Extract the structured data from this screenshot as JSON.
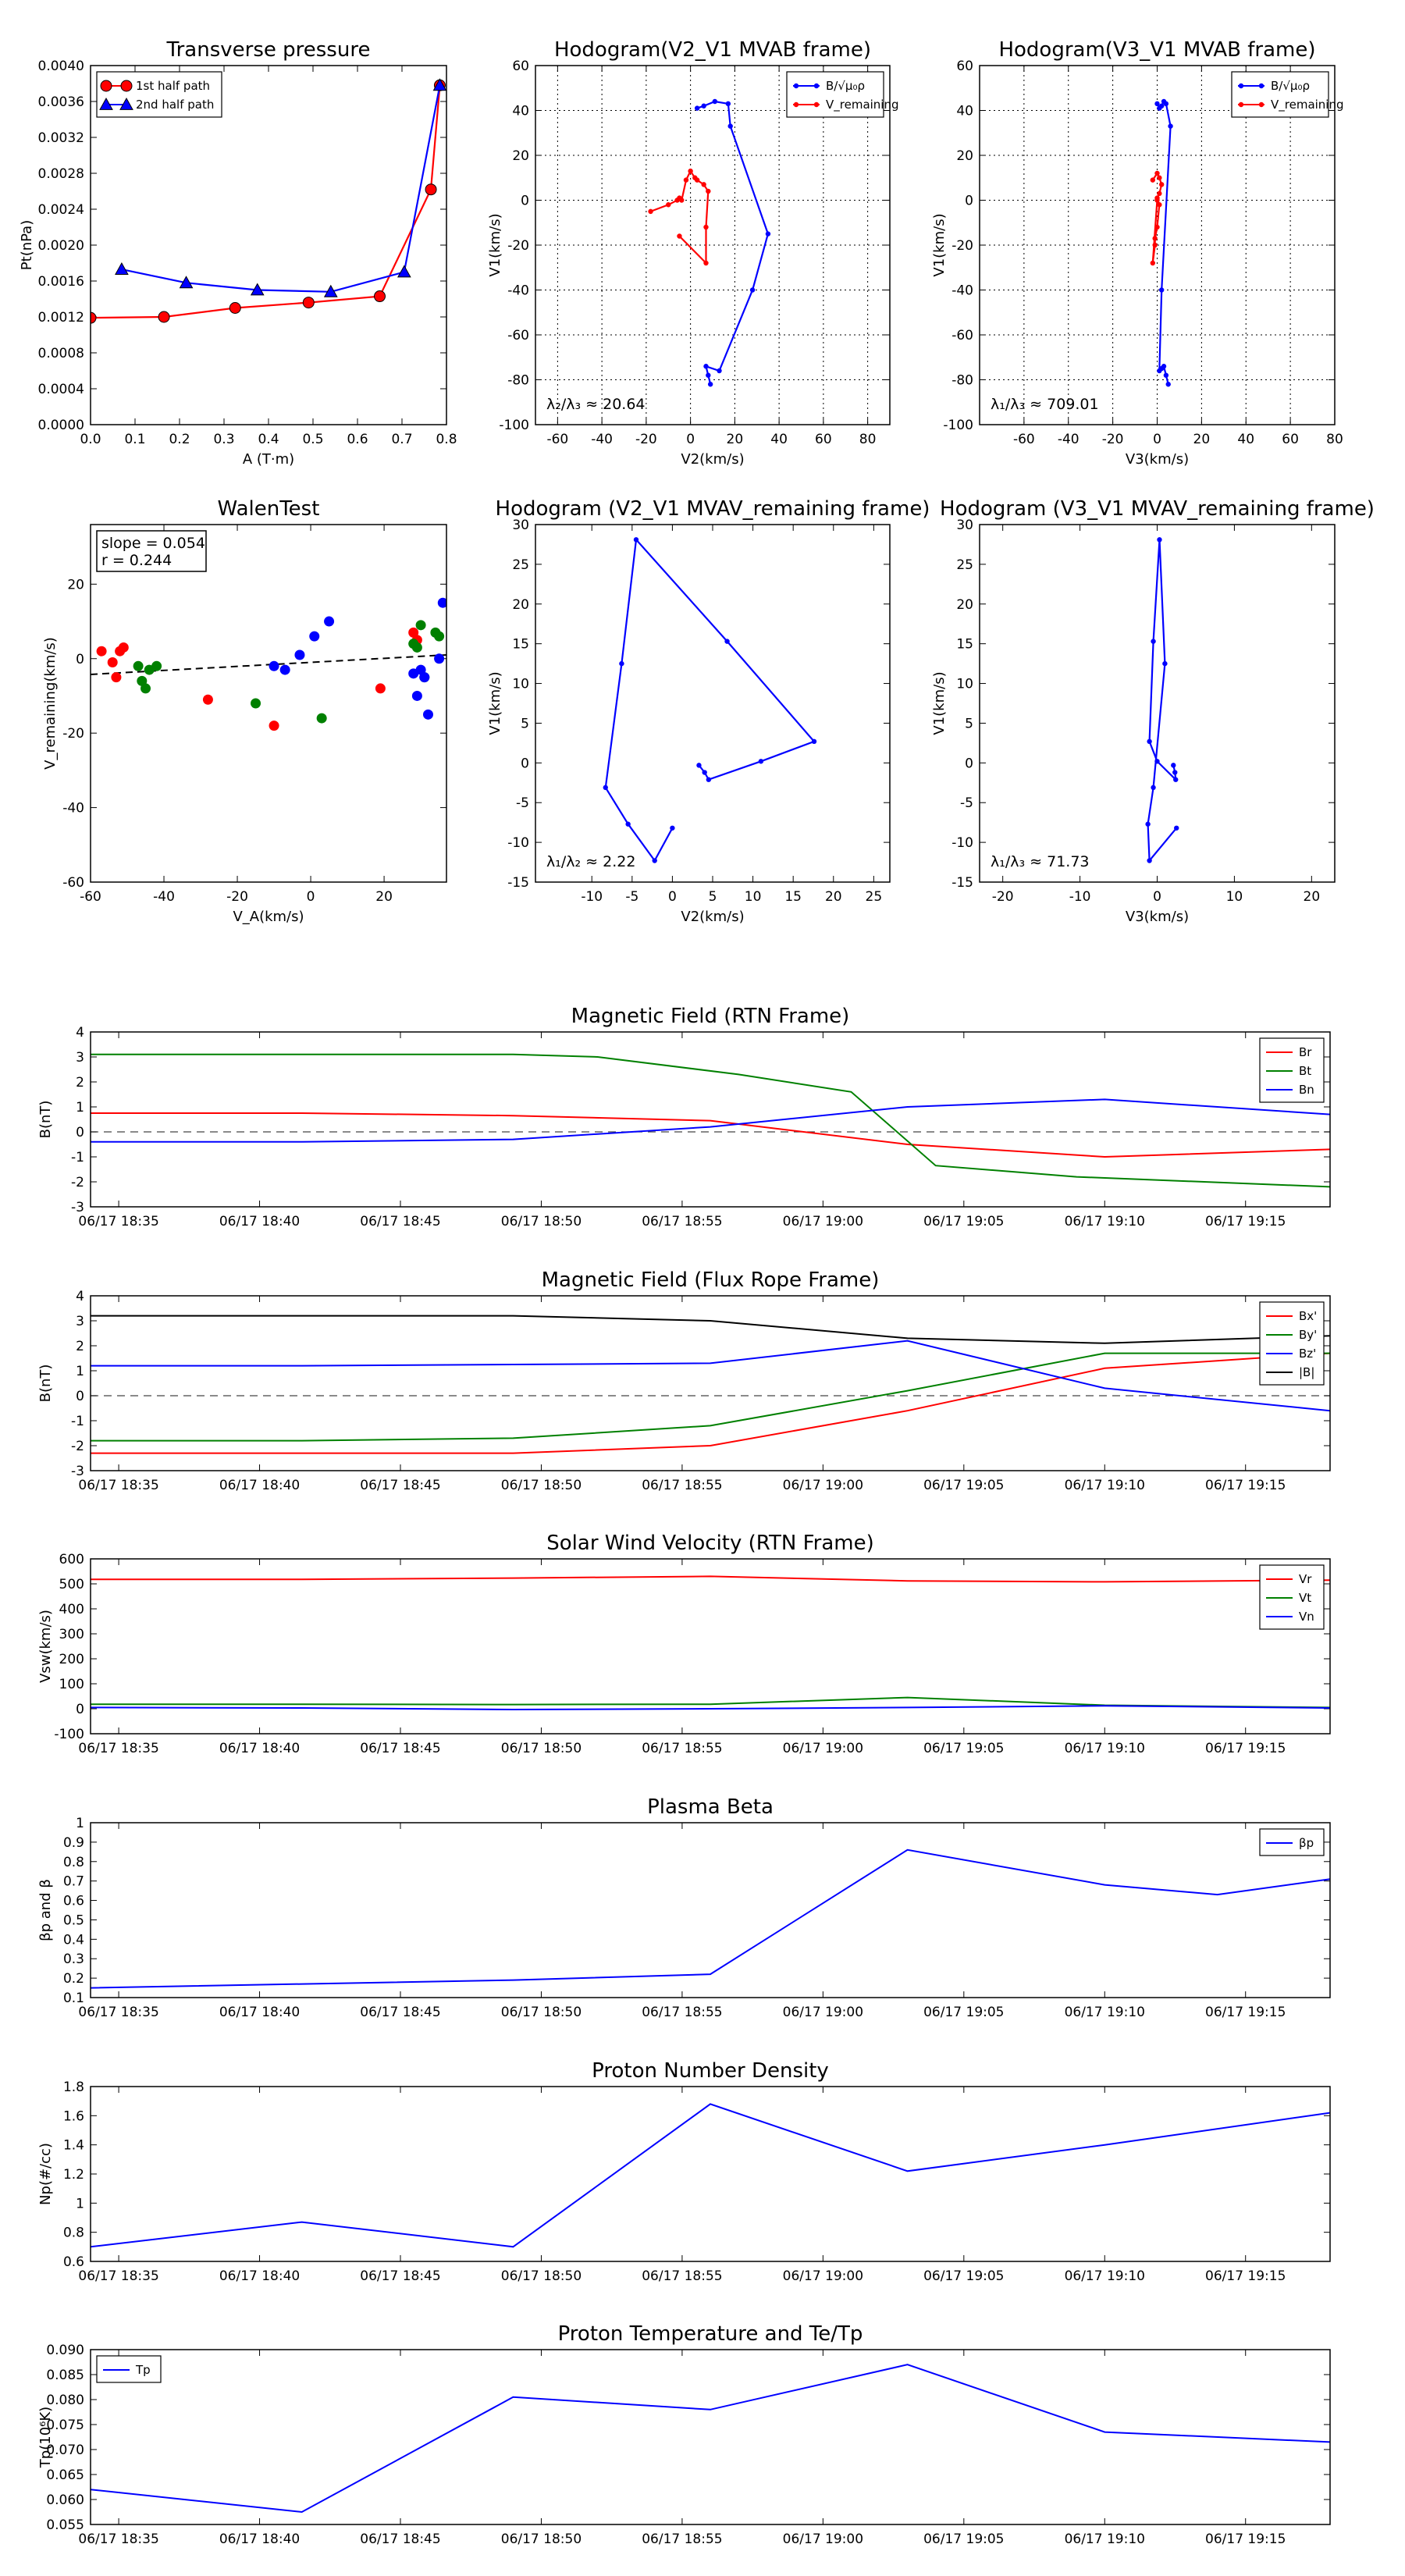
{
  "chart_data": [
    {
      "id": "pt",
      "type": "line",
      "title": "Transverse pressure",
      "xlabel": "A (T·m)",
      "ylabel": "Pt(nPa)",
      "xlim": [
        0,
        0.8
      ],
      "ylim": [
        0,
        0.004
      ],
      "xticks": [
        0,
        0.1,
        0.2,
        0.3,
        0.4,
        0.5,
        0.6,
        0.7,
        0.8
      ],
      "xticklabels": [
        "0.0",
        "0.1",
        "0.2",
        "0.3",
        "0.4",
        "0.5",
        "0.6",
        "0.7",
        "0.8"
      ],
      "yticks": [
        0,
        0.0004,
        0.0008,
        0.0012,
        0.0016,
        0.002,
        0.0024,
        0.0028,
        0.0032,
        0.0036,
        0.004
      ],
      "yticklabels": [
        "0.0000",
        "0.0004",
        "0.0008",
        "0.0012",
        "0.0016",
        "0.0020",
        "0.0024",
        "0.0028",
        "0.0032",
        "0.0036",
        "0.0040"
      ],
      "legend": "top-left",
      "series": [
        {
          "name": "1st half path",
          "color": "#ff0000",
          "marker": "circle",
          "x": [
            0.0,
            0.165,
            0.325,
            0.49,
            0.65,
            0.765,
            0.785
          ],
          "y": [
            0.00119,
            0.0012,
            0.0013,
            0.00136,
            0.00143,
            0.00262,
            0.00378
          ]
        },
        {
          "name": "2nd half path",
          "color": "#0000ff",
          "marker": "triangle",
          "x": [
            0.785,
            0.705,
            0.54,
            0.375,
            0.215,
            0.07
          ],
          "y": [
            0.00378,
            0.0017,
            0.00148,
            0.0015,
            0.00158,
            0.00173
          ]
        }
      ]
    },
    {
      "id": "h1",
      "type": "line",
      "title": "Hodogram(V2_V1 MVAB frame)",
      "xlabel": "V2(km/s)",
      "ylabel": "V1(km/s)",
      "xlim": [
        -70,
        90
      ],
      "ylim": [
        -100,
        60
      ],
      "xticks": [
        -60,
        -40,
        -20,
        0,
        20,
        40,
        60,
        80
      ],
      "yticks": [
        -100,
        -80,
        -60,
        -40,
        -20,
        0,
        20,
        40,
        60
      ],
      "grid": true,
      "legend": "top-right",
      "annotation": "λ₂/λ₃ ≈ 20.64",
      "series": [
        {
          "name": "B/√μ₀ρ",
          "color": "#0000ff",
          "x": [
            3,
            6,
            11,
            17,
            18,
            35,
            28,
            13,
            7,
            8,
            9
          ],
          "y": [
            41,
            42,
            44,
            43,
            33,
            -15,
            -40,
            -76,
            -74,
            -78,
            -82
          ]
        },
        {
          "name": "V_remaining",
          "color": "#ff0000",
          "x": [
            -18,
            -10,
            -6,
            -5,
            -4,
            -2,
            0,
            2,
            3,
            6,
            8,
            7,
            7,
            -5
          ],
          "y": [
            -5,
            -2,
            0,
            1,
            0,
            9,
            13,
            10,
            9,
            7,
            4,
            -12,
            -28,
            -16
          ]
        }
      ]
    },
    {
      "id": "h2",
      "type": "line",
      "title": "Hodogram(V3_V1 MVAB frame)",
      "xlabel": "V3(km/s)",
      "ylabel": "V1(km/s)",
      "xlim": [
        -80,
        80
      ],
      "ylim": [
        -100,
        60
      ],
      "xticks": [
        -60,
        -40,
        -20,
        0,
        20,
        40,
        60,
        80
      ],
      "yticks": [
        -100,
        -80,
        -60,
        -40,
        -20,
        0,
        20,
        40,
        60
      ],
      "grid": true,
      "legend": "top-right",
      "annotation": "λ₁/λ₃ ≈ 709.01",
      "series": [
        {
          "name": "B/√μ₀ρ",
          "color": "#0000ff",
          "x": [
            0,
            1,
            2,
            3,
            4,
            6,
            2,
            1,
            2,
            3,
            4,
            5
          ],
          "y": [
            43,
            41,
            42,
            44,
            43,
            33,
            -40,
            -76,
            -75,
            -74,
            -78,
            -82
          ]
        },
        {
          "name": "V_remaining",
          "color": "#ff0000",
          "x": [
            -2,
            0,
            1,
            2,
            1,
            0,
            1,
            0,
            -1,
            -1,
            -2,
            0
          ],
          "y": [
            9,
            12,
            10,
            7,
            3,
            1,
            -2,
            -12,
            -17,
            -20,
            -28,
            0
          ]
        }
      ]
    },
    {
      "id": "walen",
      "type": "scatter",
      "title": "WalenTest",
      "xlabel": "V_A(km/s)",
      "ylabel": "V_remaining(km/s)",
      "xlim": [
        -60,
        37
      ],
      "ylim": [
        -60,
        36
      ],
      "xticks": [
        -60,
        -40,
        -20,
        0,
        20
      ],
      "yticks": [
        -60,
        -40,
        -20,
        0,
        20
      ],
      "annotation": [
        "slope = 0.054",
        "r = 0.244"
      ],
      "fit": {
        "slope": 0.054,
        "intercept": -1.0
      },
      "series": [
        {
          "color": "#ff0000",
          "x": [
            -57,
            -54,
            -53,
            -52,
            -51,
            -28,
            -10,
            19,
            28,
            29
          ],
          "y": [
            2,
            -1,
            -5,
            2,
            3,
            -11,
            -18,
            -8,
            7,
            5
          ]
        },
        {
          "color": "#008000",
          "x": [
            -47,
            -46,
            -45,
            -44,
            -42,
            -15,
            3,
            28,
            29,
            30,
            31,
            34,
            35
          ],
          "y": [
            -2,
            -6,
            -8,
            -3,
            -2,
            -12,
            -16,
            4,
            3,
            9,
            -5,
            7,
            6
          ]
        },
        {
          "color": "#0000ff",
          "x": [
            -10,
            -7,
            -3,
            1,
            5,
            28,
            29,
            30,
            31,
            32,
            35,
            36
          ],
          "y": [
            -2,
            -3,
            1,
            6,
            10,
            -4,
            -10,
            -3,
            -5,
            -15,
            0,
            15
          ]
        }
      ]
    },
    {
      "id": "h3",
      "type": "line",
      "title": "Hodogram (V2_V1 MVAV_remaining frame)",
      "xlabel": "V2(km/s)",
      "ylabel": "V1(km/s)",
      "xlim": [
        -17,
        27
      ],
      "ylim": [
        -15,
        30
      ],
      "xticks": [
        -10,
        -5,
        0,
        5,
        10,
        15,
        20,
        25
      ],
      "yticks": [
        -15,
        -10,
        -5,
        0,
        5,
        10,
        15,
        20,
        25,
        30
      ],
      "annotation": "λ₁/λ₂ ≈ 2.22",
      "series": [
        {
          "color": "#0000ff",
          "x": [
            3.3,
            4,
            4.5,
            11,
            17.6,
            6.8,
            -4.5,
            -6.3,
            -8.3,
            -5.5,
            -2.2,
            0
          ],
          "y": [
            -0.3,
            -1.2,
            -2.1,
            0.2,
            2.7,
            15.3,
            28.1,
            12.5,
            -3.1,
            -7.7,
            -12.3,
            -8.2
          ]
        }
      ]
    },
    {
      "id": "h4",
      "type": "line",
      "title": "Hodogram (V3_V1 MVAV_remaining frame)",
      "xlabel": "V3(km/s)",
      "ylabel": "V1(km/s)",
      "xlim": [
        -23,
        23
      ],
      "ylim": [
        -15,
        30
      ],
      "xticks": [
        -20,
        -10,
        0,
        10,
        20
      ],
      "yticks": [
        -15,
        -10,
        -5,
        0,
        5,
        10,
        15,
        20,
        25,
        30
      ],
      "annotation": "λ₁/λ₃ ≈ 71.73",
      "series": [
        {
          "color": "#0000ff",
          "x": [
            2.1,
            2.3,
            2.4,
            0,
            -1,
            -0.5,
            0.3,
            1,
            -0.5,
            -1.2,
            -1,
            2.5
          ],
          "y": [
            -0.3,
            -1.2,
            -2.1,
            0.2,
            2.7,
            15.3,
            28.1,
            12.5,
            -3.1,
            -7.7,
            -12.3,
            -8.2
          ]
        }
      ]
    },
    {
      "id": "mag",
      "type": "line",
      "title": "Magnetic Field (RTN Frame)",
      "ylabel": "B(nT)",
      "xlim": [
        0,
        44
      ],
      "ylim": [
        -3,
        4
      ],
      "yticks": [
        -3,
        -2,
        -1,
        0,
        1,
        2,
        3,
        4
      ],
      "xticks": [
        1,
        6,
        11,
        16,
        21,
        26,
        31,
        36,
        41
      ],
      "xticklabels": [
        "06/17 18:35",
        "06/17 18:40",
        "06/17 18:45",
        "06/17 18:50",
        "06/17 18:55",
        "06/17 19:00",
        "06/17 19:05",
        "06/17 19:10",
        "06/17 19:15"
      ],
      "zero_line": true,
      "legend": "top-right",
      "series": [
        {
          "name": "Br",
          "color": "#ff0000",
          "x": [
            0,
            7.5,
            15,
            22,
            29,
            36,
            44
          ],
          "y": [
            0.75,
            0.75,
            0.65,
            0.45,
            -0.5,
            -1.0,
            -0.7
          ]
        },
        {
          "name": "Bt",
          "color": "#008000",
          "x": [
            0,
            7.5,
            15,
            18,
            23,
            27,
            30,
            35,
            44
          ],
          "y": [
            3.1,
            3.1,
            3.1,
            3.0,
            2.3,
            1.6,
            -1.35,
            -1.8,
            -2.2
          ]
        },
        {
          "name": "Bn",
          "color": "#0000ff",
          "x": [
            0,
            7.5,
            15,
            22,
            29,
            36,
            44
          ],
          "y": [
            -0.4,
            -0.4,
            -0.3,
            0.2,
            1.0,
            1.3,
            0.7
          ]
        }
      ]
    },
    {
      "id": "fr",
      "type": "line",
      "title": "Magnetic Field (Flux Rope Frame)",
      "ylabel": "B(nT)",
      "xlim": [
        0,
        44
      ],
      "ylim": [
        -3,
        4
      ],
      "yticks": [
        -3,
        -2,
        -1,
        0,
        1,
        2,
        3,
        4
      ],
      "xticks": [
        1,
        6,
        11,
        16,
        21,
        26,
        31,
        36,
        41
      ],
      "xticklabels": [
        "06/17 18:35",
        "06/17 18:40",
        "06/17 18:45",
        "06/17 18:50",
        "06/17 18:55",
        "06/17 19:00",
        "06/17 19:05",
        "06/17 19:10",
        "06/17 19:15"
      ],
      "zero_line": true,
      "legend": "top-right",
      "series": [
        {
          "name": "Bx'",
          "color": "#ff0000",
          "x": [
            0,
            7.5,
            15,
            22,
            29,
            36,
            44
          ],
          "y": [
            -2.3,
            -2.3,
            -2.3,
            -2.0,
            -0.6,
            1.1,
            1.7
          ]
        },
        {
          "name": "By'",
          "color": "#008000",
          "x": [
            0,
            7.5,
            15,
            22,
            29,
            36,
            44
          ],
          "y": [
            -1.8,
            -1.8,
            -1.7,
            -1.2,
            0.2,
            1.7,
            1.7
          ]
        },
        {
          "name": "Bz'",
          "color": "#0000ff",
          "x": [
            0,
            7.5,
            15,
            22,
            29,
            36,
            44
          ],
          "y": [
            1.2,
            1.2,
            1.25,
            1.3,
            2.2,
            0.3,
            -0.6
          ]
        },
        {
          "name": "|B|",
          "color": "#000000",
          "x": [
            0,
            7.5,
            15,
            22,
            29,
            36,
            44
          ],
          "y": [
            3.2,
            3.2,
            3.2,
            3.0,
            2.3,
            2.1,
            2.4
          ]
        }
      ]
    },
    {
      "id": "vel",
      "type": "line",
      "title": "Solar Wind Velocity (RTN Frame)",
      "ylabel": "Vsw(km/s)",
      "xlim": [
        0,
        44
      ],
      "ylim": [
        -100,
        600
      ],
      "yticks": [
        -100,
        0,
        100,
        200,
        300,
        400,
        500,
        600
      ],
      "xticks": [
        1,
        6,
        11,
        16,
        21,
        26,
        31,
        36,
        41
      ],
      "xticklabels": [
        "06/17 18:35",
        "06/17 18:40",
        "06/17 18:45",
        "06/17 18:50",
        "06/17 18:55",
        "06/17 19:00",
        "06/17 19:05",
        "06/17 19:10",
        "06/17 19:15"
      ],
      "legend": "top-right",
      "series": [
        {
          "name": "Vr",
          "color": "#ff0000",
          "x": [
            0,
            7.5,
            15,
            22,
            29,
            36,
            44
          ],
          "y": [
            518,
            518,
            523,
            530,
            512,
            508,
            515
          ]
        },
        {
          "name": "Vt",
          "color": "#008000",
          "x": [
            0,
            7.5,
            15,
            22,
            29,
            36,
            44
          ],
          "y": [
            18,
            18,
            17,
            18,
            45,
            14,
            5
          ]
        },
        {
          "name": "Vn",
          "color": "#0000ff",
          "x": [
            0,
            7.5,
            15,
            22,
            29,
            36,
            44
          ],
          "y": [
            5,
            3,
            -3,
            0,
            5,
            12,
            3
          ]
        }
      ]
    },
    {
      "id": "beta",
      "type": "line",
      "title": "Plasma Beta",
      "ylabel": "βp and β",
      "xlim": [
        0,
        44
      ],
      "ylim": [
        0.1,
        1.0
      ],
      "yticks": [
        0.1,
        0.2,
        0.3,
        0.4,
        0.5,
        0.6,
        0.7,
        0.8,
        0.9,
        1.0
      ],
      "xticks": [
        1,
        6,
        11,
        16,
        21,
        26,
        31,
        36,
        41
      ],
      "xticklabels": [
        "06/17 18:35",
        "06/17 18:40",
        "06/17 18:45",
        "06/17 18:50",
        "06/17 18:55",
        "06/17 19:00",
        "06/17 19:05",
        "06/17 19:10",
        "06/17 19:15"
      ],
      "legend": "top-right",
      "series": [
        {
          "name": "βp",
          "color": "#0000ff",
          "x": [
            0,
            7.5,
            15,
            22,
            29,
            36,
            40,
            44
          ],
          "y": [
            0.15,
            0.17,
            0.19,
            0.22,
            0.86,
            0.68,
            0.63,
            0.71
          ]
        }
      ]
    },
    {
      "id": "np",
      "type": "line",
      "title": "Proton Number Density",
      "ylabel": "Np(#/cc)",
      "xlim": [
        0,
        44
      ],
      "ylim": [
        0.6,
        1.8
      ],
      "yticks": [
        0.6,
        0.8,
        1.0,
        1.2,
        1.4,
        1.6,
        1.8
      ],
      "xticks": [
        1,
        6,
        11,
        16,
        21,
        26,
        31,
        36,
        41
      ],
      "xticklabels": [
        "06/17 18:35",
        "06/17 18:40",
        "06/17 18:45",
        "06/17 18:50",
        "06/17 18:55",
        "06/17 19:00",
        "06/17 19:05",
        "06/17 19:10",
        "06/17 19:15"
      ],
      "series": [
        {
          "name": "Np",
          "color": "#0000ff",
          "x": [
            0,
            7.5,
            15,
            22,
            29,
            36,
            44
          ],
          "y": [
            0.7,
            0.87,
            0.7,
            1.68,
            1.22,
            1.4,
            1.62
          ]
        }
      ]
    },
    {
      "id": "tp",
      "type": "line",
      "title": "Proton Temperature and Te/Tp",
      "ylabel": "Tp(10⁶K)",
      "xlim": [
        0,
        44
      ],
      "ylim": [
        0.055,
        0.09
      ],
      "yticks": [
        0.055,
        0.06,
        0.065,
        0.07,
        0.075,
        0.08,
        0.085,
        0.09
      ],
      "yticklabels": [
        "0.055",
        "0.060",
        "0.065",
        "0.070",
        "0.075",
        "0.080",
        "0.085",
        "0.090"
      ],
      "xticks": [
        1,
        6,
        11,
        16,
        21,
        26,
        31,
        36,
        41
      ],
      "xticklabels": [
        "06/17 18:35",
        "06/17 18:40",
        "06/17 18:45",
        "06/17 18:50",
        "06/17 18:55",
        "06/17 19:00",
        "06/17 19:05",
        "06/17 19:10",
        "06/17 19:15"
      ],
      "legend": "top-left",
      "series": [
        {
          "name": "Tp",
          "color": "#0000ff",
          "x": [
            0,
            7.5,
            15,
            22,
            29,
            36,
            44
          ],
          "y": [
            0.062,
            0.0575,
            0.0805,
            0.078,
            0.087,
            0.0735,
            0.0715
          ]
        }
      ]
    }
  ]
}
